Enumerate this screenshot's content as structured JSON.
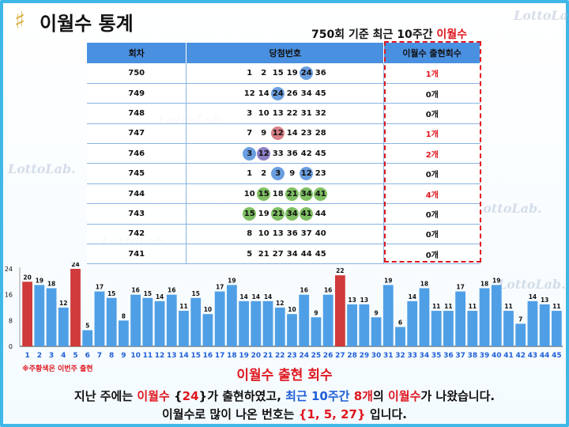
{
  "header": {
    "logo_glyph": "♯",
    "title": "이월수 통계",
    "subtitle_prefix": "750회 기준 최근 10주간 ",
    "subtitle_highlight": "이월수"
  },
  "watermark": "LottoLab.",
  "table": {
    "headers": [
      "회차",
      "당첨번호",
      "이월수 출현회수"
    ],
    "rows": [
      {
        "round": "750",
        "numbers": [
          1,
          2,
          15,
          19,
          24,
          36
        ],
        "highlights": {
          "24": "blue"
        },
        "count": "1개",
        "count_red": true
      },
      {
        "round": "749",
        "numbers": [
          12,
          14,
          24,
          26,
          34,
          45
        ],
        "highlights": {
          "24": "blue"
        },
        "count": "0개",
        "count_red": false
      },
      {
        "round": "748",
        "numbers": [
          3,
          10,
          13,
          22,
          31,
          32
        ],
        "highlights": {},
        "count": "0개",
        "count_red": false
      },
      {
        "round": "747",
        "numbers": [
          7,
          9,
          12,
          14,
          23,
          28
        ],
        "highlights": {
          "12": "red"
        },
        "count": "1개",
        "count_red": true
      },
      {
        "round": "746",
        "numbers": [
          3,
          12,
          33,
          36,
          42,
          45
        ],
        "highlights": {
          "3": "blue",
          "12": "purple"
        },
        "count": "2개",
        "count_red": true
      },
      {
        "round": "745",
        "numbers": [
          1,
          2,
          3,
          9,
          12,
          23
        ],
        "highlights": {
          "3": "blue",
          "12": "blue"
        },
        "count": "0개",
        "count_red": false
      },
      {
        "round": "744",
        "numbers": [
          10,
          15,
          18,
          21,
          34,
          41
        ],
        "highlights": {
          "15": "green",
          "21": "green",
          "34": "green",
          "41": "green"
        },
        "count": "4개",
        "count_red": true
      },
      {
        "round": "743",
        "numbers": [
          15,
          19,
          21,
          34,
          41,
          44
        ],
        "highlights": {
          "15": "green",
          "21": "green",
          "34": "green",
          "41": "green"
        },
        "count": "0개",
        "count_red": false
      },
      {
        "round": "742",
        "numbers": [
          8,
          10,
          13,
          36,
          37,
          40
        ],
        "highlights": {},
        "count": "0개",
        "count_red": false
      },
      {
        "round": "741",
        "numbers": [
          5,
          21,
          27,
          34,
          44,
          45
        ],
        "highlights": {},
        "count": "0개",
        "count_red": false
      }
    ]
  },
  "chart_data": {
    "type": "bar",
    "title": "이월수 출현 회수",
    "categories": [
      "1",
      "2",
      "3",
      "4",
      "5",
      "6",
      "7",
      "8",
      "9",
      "10",
      "11",
      "12",
      "13",
      "14",
      "15",
      "16",
      "17",
      "18",
      "19",
      "20",
      "21",
      "22",
      "23",
      "24",
      "25",
      "26",
      "27",
      "28",
      "29",
      "30",
      "31",
      "32",
      "33",
      "34",
      "35",
      "36",
      "37",
      "38",
      "39",
      "40",
      "41",
      "42",
      "43",
      "44",
      "45"
    ],
    "values": [
      20,
      19,
      18,
      12,
      24,
      5,
      17,
      15,
      8,
      16,
      15,
      14,
      16,
      11,
      15,
      10,
      17,
      19,
      14,
      14,
      14,
      12,
      10,
      16,
      9,
      16,
      22,
      13,
      13,
      9,
      19,
      6,
      14,
      18,
      11,
      11,
      17,
      11,
      18,
      19,
      11,
      7,
      14,
      13,
      11
    ],
    "highlighted": [
      "1",
      "5",
      "27"
    ],
    "yticks": [
      0,
      8,
      16,
      24
    ],
    "ylim": [
      0,
      24
    ],
    "grid": false,
    "colors": {
      "bar": "#4f9fe6",
      "highlight": "#d03a3a",
      "tick": "#1f5fd6"
    }
  },
  "note": "※주황색은 이번주 출현",
  "summary": {
    "line1": [
      {
        "text": "지난 주에는 ",
        "style": ""
      },
      {
        "text": "이월수",
        "style": "red"
      },
      {
        "text": " {",
        "style": ""
      },
      {
        "text": "24",
        "style": "red"
      },
      {
        "text": "}가 출현하였고, ",
        "style": ""
      },
      {
        "text": "최근 10주간",
        "style": "blue"
      },
      {
        "text": " ",
        "style": ""
      },
      {
        "text": "8개",
        "style": "red"
      },
      {
        "text": "의 ",
        "style": ""
      },
      {
        "text": "이월수",
        "style": "red"
      },
      {
        "text": "가 나왔습니다.",
        "style": ""
      }
    ],
    "line2": [
      {
        "text": "이월수로 많이 나온 번호는 ",
        "style": ""
      },
      {
        "text": "{1, 5, 27}",
        "style": "red"
      },
      {
        "text": " 입니다.",
        "style": ""
      }
    ]
  }
}
